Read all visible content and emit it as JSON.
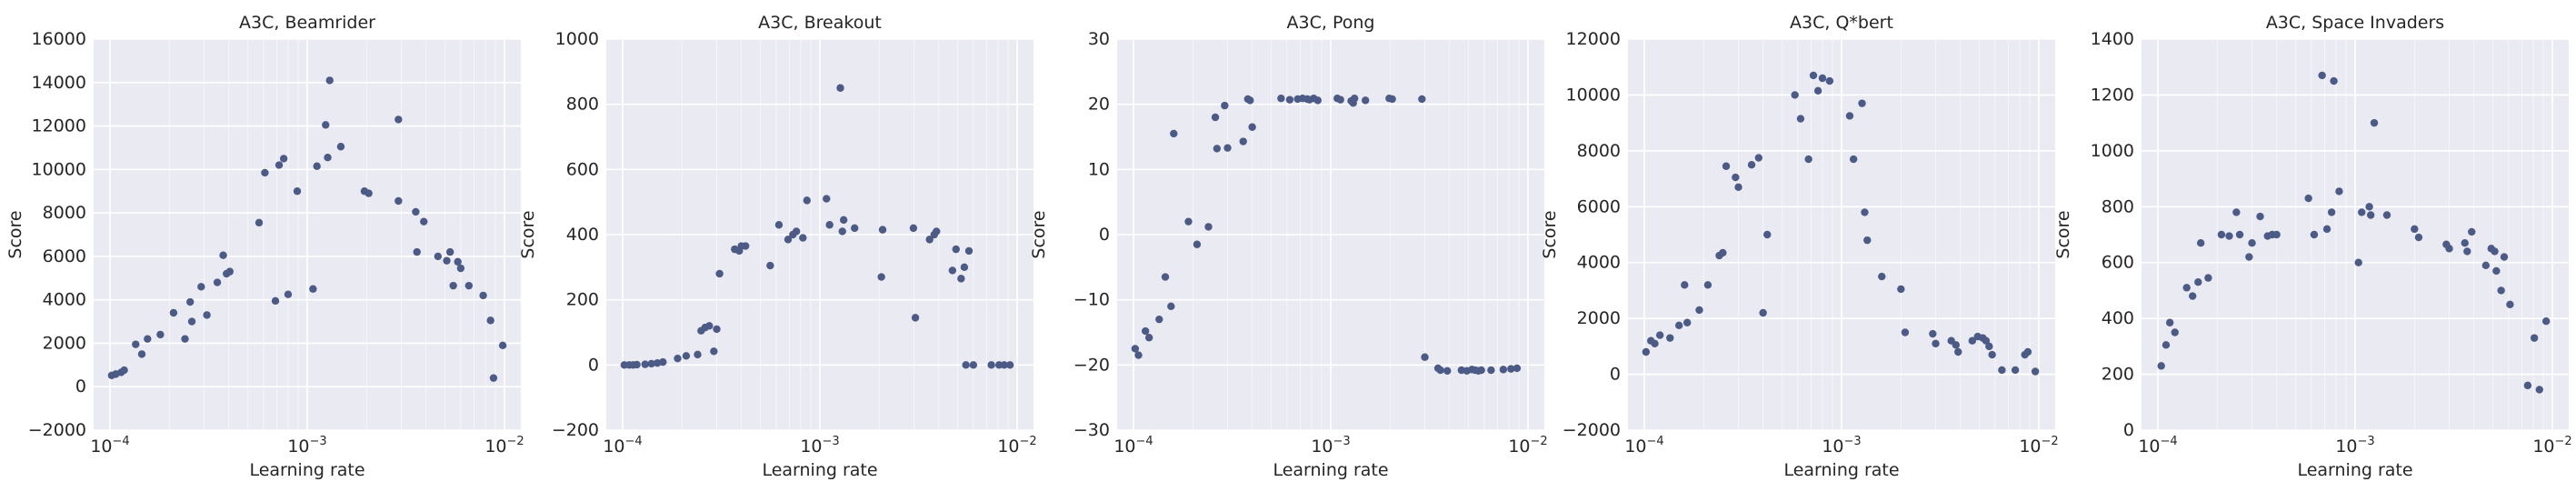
{
  "colors": {
    "panel_bg": "#EAEAF2",
    "grid": "#FFFFFF",
    "point": "#4C5A86",
    "text": "#262626"
  },
  "chart_data": [
    {
      "type": "scatter",
      "title": "A3C, Beamrider",
      "xlabel": "Learning rate",
      "ylabel": "Score",
      "xscale": "log",
      "xlim": [
        0.0001,
        0.01
      ],
      "ylim": [
        -2000,
        16000
      ],
      "yticks": [
        "−2000",
        "0",
        "2000",
        "4000",
        "6000",
        "8000",
        "10000",
        "12000",
        "14000",
        "16000"
      ],
      "ytick_values": [
        -2000,
        0,
        2000,
        4000,
        6000,
        8000,
        10000,
        12000,
        14000,
        16000
      ],
      "xticks": [
        {
          "base": "10",
          "exp": "−4"
        },
        {
          "base": "10",
          "exp": "−3"
        },
        {
          "base": "10",
          "exp": "−2"
        }
      ],
      "grid": true,
      "points": [
        [
          0.000102,
          520
        ],
        [
          0.000107,
          580
        ],
        [
          0.000114,
          660
        ],
        [
          0.000118,
          760
        ],
        [
          0.000135,
          1950
        ],
        [
          0.000145,
          1500
        ],
        [
          0.000155,
          2200
        ],
        [
          0.00018,
          2400
        ],
        [
          0.00021,
          3400
        ],
        [
          0.00024,
          2200
        ],
        [
          0.000255,
          3900
        ],
        [
          0.00026,
          3000
        ],
        [
          0.00029,
          4600
        ],
        [
          0.00031,
          3300
        ],
        [
          0.00035,
          4800
        ],
        [
          0.000375,
          6050
        ],
        [
          0.00039,
          5200
        ],
        [
          0.000405,
          5300
        ],
        [
          0.00057,
          7550
        ],
        [
          0.00061,
          9850
        ],
        [
          0.00069,
          3950
        ],
        [
          0.00072,
          10200
        ],
        [
          0.00076,
          10500
        ],
        [
          0.0008,
          4250
        ],
        [
          0.00089,
          9000
        ],
        [
          0.00107,
          4500
        ],
        [
          0.00112,
          10150
        ],
        [
          0.00124,
          12050
        ],
        [
          0.00127,
          10550
        ],
        [
          0.0013,
          14100
        ],
        [
          0.00148,
          11050
        ],
        [
          0.00195,
          9000
        ],
        [
          0.00205,
          8900
        ],
        [
          0.0029,
          12300
        ],
        [
          0.0029,
          8550
        ],
        [
          0.00355,
          8050
        ],
        [
          0.0036,
          6200
        ],
        [
          0.0039,
          7600
        ],
        [
          0.0046,
          6000
        ],
        [
          0.0051,
          5800
        ],
        [
          0.0053,
          6200
        ],
        [
          0.0055,
          4650
        ],
        [
          0.0058,
          5750
        ],
        [
          0.006,
          5450
        ],
        [
          0.0066,
          4650
        ],
        [
          0.0078,
          4200
        ],
        [
          0.0085,
          3050
        ],
        [
          0.0088,
          400
        ],
        [
          0.0098,
          1900
        ]
      ]
    },
    {
      "type": "scatter",
      "title": "A3C, Breakout",
      "xlabel": "Learning rate",
      "ylabel": "Score",
      "xscale": "log",
      "xlim": [
        0.0001,
        0.01
      ],
      "ylim": [
        -200,
        1000
      ],
      "yticks": [
        "−200",
        "0",
        "200",
        "400",
        "600",
        "800",
        "1000"
      ],
      "ytick_values": [
        -200,
        0,
        200,
        400,
        600,
        800,
        1000
      ],
      "xticks": [
        {
          "base": "10",
          "exp": "−4"
        },
        {
          "base": "10",
          "exp": "−3"
        },
        {
          "base": "10",
          "exp": "−2"
        }
      ],
      "grid": true,
      "points": [
        [
          0.000102,
          0
        ],
        [
          0.000108,
          0
        ],
        [
          0.000113,
          0
        ],
        [
          0.000118,
          1
        ],
        [
          0.00013,
          2
        ],
        [
          0.00014,
          4
        ],
        [
          0.00015,
          6
        ],
        [
          0.00016,
          9
        ],
        [
          0.00019,
          20
        ],
        [
          0.00021,
          28
        ],
        [
          0.00024,
          32
        ],
        [
          0.00025,
          105
        ],
        [
          0.000262,
          115
        ],
        [
          0.000275,
          120
        ],
        [
          0.00029,
          42
        ],
        [
          0.0003,
          110
        ],
        [
          0.00031,
          280
        ],
        [
          0.00037,
          355
        ],
        [
          0.00039,
          350
        ],
        [
          0.0004,
          365
        ],
        [
          0.00042,
          365
        ],
        [
          0.00056,
          305
        ],
        [
          0.00062,
          430
        ],
        [
          0.00069,
          385
        ],
        [
          0.00073,
          400
        ],
        [
          0.00076,
          410
        ],
        [
          0.00082,
          390
        ],
        [
          0.00086,
          505
        ],
        [
          0.00108,
          510
        ],
        [
          0.00112,
          430
        ],
        [
          0.00127,
          850
        ],
        [
          0.0013,
          410
        ],
        [
          0.00132,
          445
        ],
        [
          0.0015,
          420
        ],
        [
          0.00205,
          270
        ],
        [
          0.00208,
          415
        ],
        [
          0.00298,
          420
        ],
        [
          0.00305,
          145
        ],
        [
          0.0036,
          385
        ],
        [
          0.0038,
          400
        ],
        [
          0.0039,
          410
        ],
        [
          0.0047,
          290
        ],
        [
          0.0049,
          355
        ],
        [
          0.0052,
          265
        ],
        [
          0.0054,
          300
        ],
        [
          0.0055,
          0
        ],
        [
          0.0057,
          350
        ],
        [
          0.006,
          0
        ],
        [
          0.0074,
          0
        ],
        [
          0.0081,
          0
        ],
        [
          0.0086,
          0
        ],
        [
          0.0092,
          0
        ]
      ]
    },
    {
      "type": "scatter",
      "title": "A3C, Pong",
      "xlabel": "Learning rate",
      "ylabel": "Score",
      "xscale": "log",
      "xlim": [
        0.0001,
        0.01
      ],
      "ylim": [
        -30,
        30
      ],
      "yticks": [
        "−30",
        "−20",
        "−10",
        "0",
        "10",
        "20",
        "30"
      ],
      "ytick_values": [
        -30,
        -20,
        -10,
        0,
        10,
        20,
        30
      ],
      "xticks": [
        {
          "base": "10",
          "exp": "−4"
        },
        {
          "base": "10",
          "exp": "−3"
        },
        {
          "base": "10",
          "exp": "−2"
        }
      ],
      "grid": true,
      "points": [
        [
          0.000102,
          -17.5
        ],
        [
          0.000106,
          -18.5
        ],
        [
          0.000115,
          -14.8
        ],
        [
          0.00012,
          -15.8
        ],
        [
          0.000135,
          -13
        ],
        [
          0.000145,
          -6.5
        ],
        [
          0.000155,
          -11
        ],
        [
          0.00016,
          15.5
        ],
        [
          0.00019,
          2
        ],
        [
          0.00021,
          -1.5
        ],
        [
          0.00024,
          1.2
        ],
        [
          0.00026,
          18
        ],
        [
          0.000265,
          13.2
        ],
        [
          0.00029,
          19.8
        ],
        [
          0.0003,
          13.3
        ],
        [
          0.00036,
          14.3
        ],
        [
          0.00038,
          20.8
        ],
        [
          0.00039,
          20.6
        ],
        [
          0.0004,
          16.5
        ],
        [
          0.00056,
          20.9
        ],
        [
          0.00062,
          20.7
        ],
        [
          0.00068,
          20.8
        ],
        [
          0.00072,
          20.9
        ],
        [
          0.00076,
          20.8
        ],
        [
          0.00078,
          20.7
        ],
        [
          0.00082,
          20.9
        ],
        [
          0.00086,
          20.6
        ],
        [
          0.00108,
          20.9
        ],
        [
          0.00112,
          20.7
        ],
        [
          0.00127,
          20.5
        ],
        [
          0.0013,
          20.2
        ],
        [
          0.00132,
          20.9
        ],
        [
          0.0015,
          20.6
        ],
        [
          0.00198,
          20.9
        ],
        [
          0.00205,
          20.8
        ],
        [
          0.0029,
          20.8
        ],
        [
          0.003,
          -18.8
        ],
        [
          0.0035,
          -20.5
        ],
        [
          0.0036,
          -20.8
        ],
        [
          0.0039,
          -20.9
        ],
        [
          0.0046,
          -20.8
        ],
        [
          0.0049,
          -20.9
        ],
        [
          0.0052,
          -20.7
        ],
        [
          0.0054,
          -20.8
        ],
        [
          0.0056,
          -20.9
        ],
        [
          0.0058,
          -20.8
        ],
        [
          0.0065,
          -20.8
        ],
        [
          0.0075,
          -20.7
        ],
        [
          0.0082,
          -20.6
        ],
        [
          0.0088,
          -20.5
        ]
      ]
    },
    {
      "type": "scatter",
      "title": "A3C, Q*bert",
      "xlabel": "Learning rate",
      "ylabel": "Score",
      "xscale": "log",
      "xlim": [
        0.0001,
        0.01
      ],
      "ylim": [
        -2000,
        12000
      ],
      "yticks": [
        "−2000",
        "0",
        "2000",
        "4000",
        "6000",
        "8000",
        "10000",
        "12000"
      ],
      "ytick_values": [
        -2000,
        0,
        2000,
        4000,
        6000,
        8000,
        10000,
        12000
      ],
      "xticks": [
        {
          "base": "10",
          "exp": "−4"
        },
        {
          "base": "10",
          "exp": "−3"
        },
        {
          "base": "10",
          "exp": "−2"
        }
      ],
      "grid": true,
      "points": [
        [
          0.000102,
          800
        ],
        [
          0.000108,
          1200
        ],
        [
          0.000113,
          1100
        ],
        [
          0.00012,
          1400
        ],
        [
          0.000135,
          1300
        ],
        [
          0.00015,
          1750
        ],
        [
          0.00016,
          3200
        ],
        [
          0.000165,
          1850
        ],
        [
          0.00019,
          2300
        ],
        [
          0.00021,
          3200
        ],
        [
          0.00024,
          4250
        ],
        [
          0.00025,
          4350
        ],
        [
          0.00026,
          7450
        ],
        [
          0.00029,
          7050
        ],
        [
          0.0003,
          6700
        ],
        [
          0.00035,
          7500
        ],
        [
          0.00038,
          7750
        ],
        [
          0.0004,
          2200
        ],
        [
          0.00042,
          5000
        ],
        [
          0.00058,
          10000
        ],
        [
          0.00062,
          9150
        ],
        [
          0.00068,
          7700
        ],
        [
          0.00072,
          10700
        ],
        [
          0.00076,
          10150
        ],
        [
          0.0008,
          10600
        ],
        [
          0.00087,
          10500
        ],
        [
          0.0011,
          9250
        ],
        [
          0.00115,
          7700
        ],
        [
          0.00127,
          9700
        ],
        [
          0.00131,
          5800
        ],
        [
          0.00135,
          4800
        ],
        [
          0.0016,
          3500
        ],
        [
          0.002,
          3050
        ],
        [
          0.0021,
          1500
        ],
        [
          0.0029,
          1450
        ],
        [
          0.003,
          1100
        ],
        [
          0.0036,
          1200
        ],
        [
          0.0038,
          1050
        ],
        [
          0.0039,
          800
        ],
        [
          0.0046,
          1200
        ],
        [
          0.0049,
          1350
        ],
        [
          0.0052,
          1300
        ],
        [
          0.0054,
          1200
        ],
        [
          0.0056,
          1000
        ],
        [
          0.0058,
          700
        ],
        [
          0.0065,
          150
        ],
        [
          0.0076,
          150
        ],
        [
          0.0085,
          700
        ],
        [
          0.0088,
          800
        ],
        [
          0.0096,
          100
        ]
      ]
    },
    {
      "type": "scatter",
      "title": "A3C, Space Invaders",
      "xlabel": "Learning rate",
      "ylabel": "Score",
      "xscale": "log",
      "xlim": [
        0.0001,
        0.01
      ],
      "ylim": [
        0,
        1400
      ],
      "yticks": [
        "0",
        "200",
        "400",
        "600",
        "800",
        "1000",
        "1200",
        "1400"
      ],
      "ytick_values": [
        0,
        200,
        400,
        600,
        800,
        1000,
        1200,
        1400
      ],
      "xticks": [
        {
          "base": "10",
          "exp": "−4"
        },
        {
          "base": "10",
          "exp": "−3"
        },
        {
          "base": "10",
          "exp": "−2"
        }
      ],
      "grid": true,
      "points": [
        [
          0.000104,
          230
        ],
        [
          0.00011,
          305
        ],
        [
          0.000115,
          385
        ],
        [
          0.000122,
          350
        ],
        [
          0.00014,
          510
        ],
        [
          0.00015,
          480
        ],
        [
          0.00016,
          530
        ],
        [
          0.000165,
          670
        ],
        [
          0.00018,
          545
        ],
        [
          0.00021,
          700
        ],
        [
          0.00023,
          695
        ],
        [
          0.00025,
          780
        ],
        [
          0.00026,
          700
        ],
        [
          0.00029,
          620
        ],
        [
          0.0003,
          670
        ],
        [
          0.00033,
          765
        ],
        [
          0.00036,
          695
        ],
        [
          0.00038,
          700
        ],
        [
          0.0004,
          700
        ],
        [
          0.00058,
          830
        ],
        [
          0.00062,
          700
        ],
        [
          0.00068,
          1270
        ],
        [
          0.00072,
          720
        ],
        [
          0.00076,
          780
        ],
        [
          0.00078,
          1250
        ],
        [
          0.00083,
          855
        ],
        [
          0.00104,
          600
        ],
        [
          0.00108,
          780
        ],
        [
          0.00118,
          800
        ],
        [
          0.0012,
          770
        ],
        [
          0.00125,
          1100
        ],
        [
          0.00145,
          770
        ],
        [
          0.002,
          720
        ],
        [
          0.0021,
          690
        ],
        [
          0.0029,
          665
        ],
        [
          0.003,
          650
        ],
        [
          0.0036,
          670
        ],
        [
          0.0037,
          640
        ],
        [
          0.0039,
          710
        ],
        [
          0.0046,
          590
        ],
        [
          0.0049,
          650
        ],
        [
          0.0051,
          640
        ],
        [
          0.0052,
          570
        ],
        [
          0.0055,
          500
        ],
        [
          0.0057,
          620
        ],
        [
          0.0061,
          450
        ],
        [
          0.0075,
          160
        ],
        [
          0.0081,
          330
        ],
        [
          0.0086,
          145
        ],
        [
          0.0093,
          390
        ]
      ]
    }
  ]
}
